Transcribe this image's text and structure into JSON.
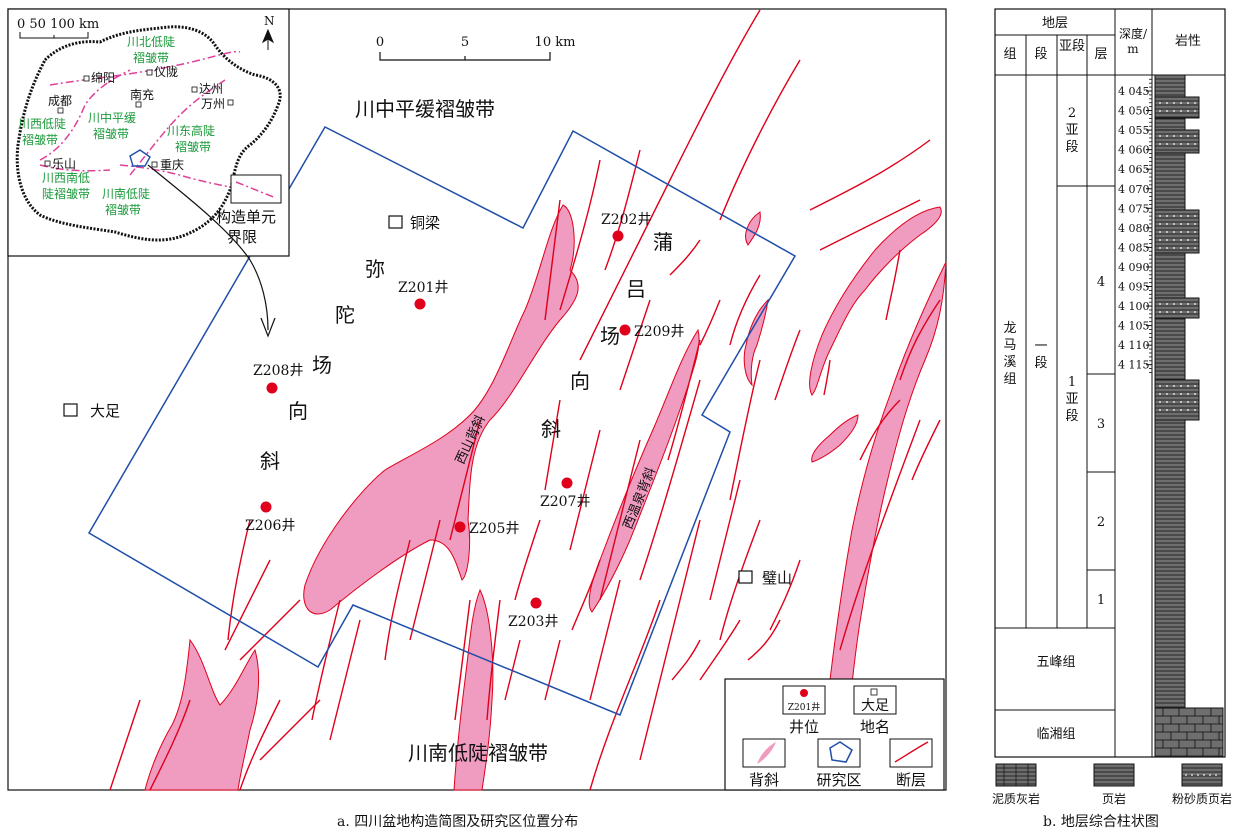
{
  "map_a": {
    "caption": "a. 四川盆地构造简图及研究区位置分布",
    "scale": {
      "ticks": [
        "0",
        "5",
        "10 km"
      ]
    },
    "regions": {
      "north": "川中平缓褶皱带",
      "south": "川南低陡褶皱带"
    },
    "synclines": {
      "mituochang": [
        "弥",
        "陀",
        "场",
        "向",
        "斜"
      ],
      "puluchang": [
        "蒲",
        "吕",
        "场",
        "向",
        "斜"
      ]
    },
    "anticlines": {
      "xishan": "西山背斜",
      "xiwenquan": "西温泉背斜"
    },
    "places": {
      "tongliang": "铜梁",
      "dazu": "大足",
      "bishan": "璧山"
    },
    "wells": [
      {
        "name": "Z202井"
      },
      {
        "name": "Z201井"
      },
      {
        "name": "Z209井"
      },
      {
        "name": "Z208井"
      },
      {
        "name": "Z207井"
      },
      {
        "name": "Z205井"
      },
      {
        "name": "Z206井"
      },
      {
        "name": "Z203井"
      }
    ],
    "inset": {
      "scale": "0  50 100 km",
      "north": "N",
      "units": {
        "chuanbei": [
          "川北低陡",
          "褶皱带"
        ],
        "chuanzhong": [
          "川中平缓",
          "褶皱带"
        ],
        "chuanxi": [
          "川西低陡",
          "褶皱带"
        ],
        "chuandong": [
          "川东高陡",
          "褶皱带"
        ],
        "chuanxinan": [
          "川西南低",
          "陡褶皱带"
        ],
        "chuannan": [
          "川南低陡",
          "褶皱带"
        ]
      },
      "cities": [
        "绵阳",
        "仪陇",
        "成都",
        "南充",
        "达州",
        "万州",
        "乐山",
        "重庆"
      ],
      "boundary_legend": [
        "构造单元",
        "界限"
      ]
    },
    "legend": {
      "well_sample": "Z201井",
      "well": "井位",
      "place_sample": "大足",
      "place": "地名",
      "anticline": "背斜",
      "study_area": "研究区",
      "fault": "断层"
    },
    "colors": {
      "anticline_fill": "#f09bc0",
      "fault": "#e0001b",
      "study_area": "#1f4fa8",
      "well": "#e0001b",
      "unit_boundary": "#e0409a",
      "unit_label": "#1a9a3a"
    }
  },
  "column_b": {
    "caption": "b. 地层综合柱状图",
    "headers": {
      "stratum": "地层",
      "formation": "组",
      "member": "段",
      "submember": "亚段",
      "layer": "层",
      "depth": "深度/",
      "depth_unit": "m",
      "lithology": "岩性"
    },
    "formations": [
      "龙马溪组",
      "五峰组",
      "临湘组"
    ],
    "member": "一段",
    "submembers": [
      "2亚段",
      "1亚段"
    ],
    "layers": [
      "4",
      "3",
      "2",
      "1"
    ],
    "depth_ticks": [
      "4 045",
      "4 050",
      "4 055",
      "4 060",
      "4 065",
      "4 070",
      "4 075",
      "4 080",
      "4 085",
      "4 090",
      "4 095",
      "4 100",
      "4 105",
      "4 110",
      "4 115"
    ],
    "lithology_legend": [
      "泥质灰岩",
      "页岩",
      "粉砂质页岩"
    ]
  }
}
